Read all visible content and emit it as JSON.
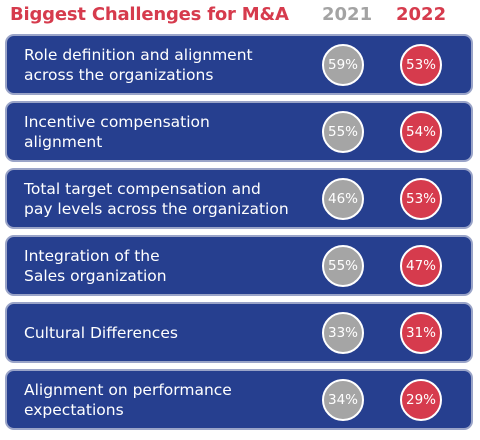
{
  "chart_data": {
    "type": "table",
    "title": "Biggest Challenges for M&A",
    "series": [
      {
        "name": "2021",
        "color": "#a5a5a5",
        "values": [
          "59%",
          "55%",
          "46%",
          "55%",
          "33%",
          "34%"
        ]
      },
      {
        "name": "2022",
        "color": "#d63b4d",
        "values": [
          "53%",
          "54%",
          "53%",
          "47%",
          "31%",
          "29%"
        ]
      }
    ],
    "categories": [
      "Role definition and alignment\nacross the organizations",
      "Incentive compensation\nalignment",
      "Total target compensation and\npay levels across the organization",
      "Integration of the\nSales organization",
      "Cultural Differences",
      "Alignment on performance\nexpectations"
    ],
    "colors": {
      "row_background": "#263f8f",
      "title": "#d63b4d"
    }
  }
}
